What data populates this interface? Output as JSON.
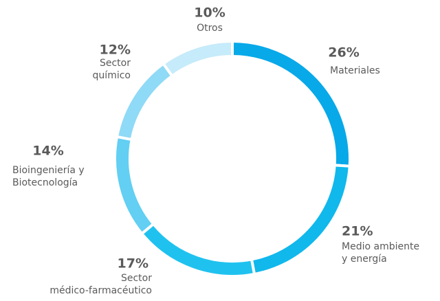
{
  "chart_data": {
    "type": "donut",
    "categories": [
      [
        "Materiales"
      ],
      [
        "Medio ambiente",
        "y energía"
      ],
      [
        "Sector",
        "médico-farmacéutico"
      ],
      [
        "Bioingeniería y",
        "Biotecnología"
      ],
      [
        "Sector",
        "químico"
      ],
      [
        "Otros"
      ]
    ],
    "values": [
      26,
      21,
      17,
      14,
      12,
      10
    ],
    "value_labels": [
      "26%",
      "21%",
      "17%",
      "14%",
      "12%",
      "10%"
    ],
    "colors": [
      "#08a9e8",
      "#10b8ec",
      "#1fc2ef",
      "#62cff3",
      "#8fdaf6",
      "#c6ebfa"
    ]
  }
}
